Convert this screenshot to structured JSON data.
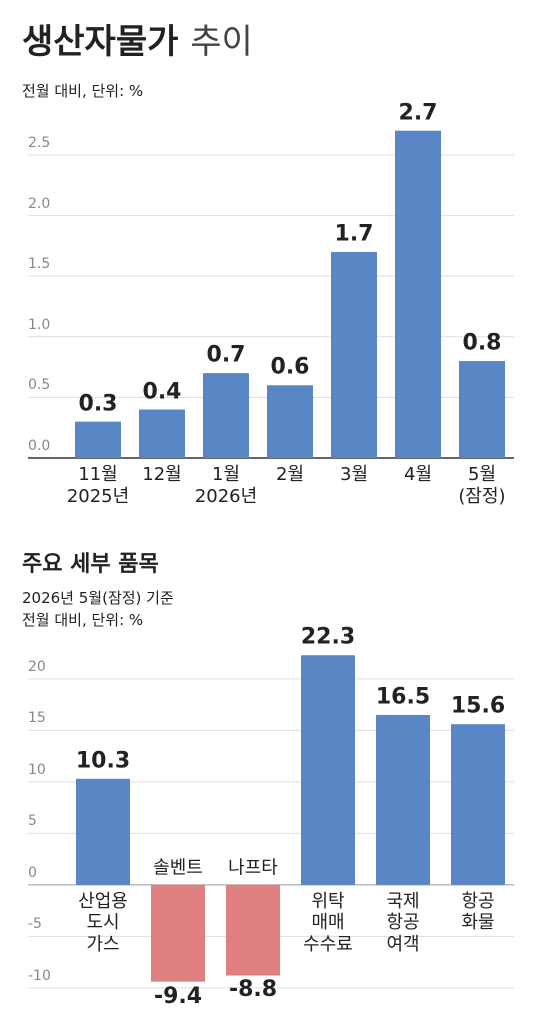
{
  "header": {
    "title": "생산자물가",
    "title_light": "추이"
  },
  "chart_data": [
    {
      "type": "bar",
      "subtitle": "전월 대비, 단위: %",
      "categories": [
        "11월\n2025년",
        "12월",
        "1월\n2026년",
        "2월",
        "3월",
        "4월",
        "5월\n(잠정)"
      ],
      "values": [
        0.3,
        0.4,
        0.7,
        0.6,
        1.7,
        2.7,
        0.8
      ],
      "color": "#5b86c5",
      "ylim": [
        0,
        2.8
      ],
      "yticks": [
        {
          "value": 0,
          "label": "0.0"
        },
        0.5,
        {
          "value": 1,
          "label": "1.0"
        },
        1.5,
        {
          "value": 2,
          "label": "2.0"
        },
        2.5
      ],
      "grid": true
    },
    {
      "type": "bar",
      "title": "주요 세부 품목",
      "subtitle": "2026년 5월(잠정) 기준\n전월 대비, 단위: %",
      "categories": [
        "산업용\n도시\n가스",
        "솔벤트",
        "나프타",
        "위탁\n매매\n수수료",
        "국제\n항공\n여객",
        "항공\n화물"
      ],
      "values": [
        10.3,
        -9.4,
        -8.8,
        22.3,
        16.5,
        15.6
      ],
      "colors": [
        "#5b86c5",
        "#e07f80",
        "#e07f80",
        "#5b86c5",
        "#5b86c5",
        "#5b86c5"
      ],
      "ylim": [
        -10.5,
        23
      ],
      "yticks": [
        -10,
        -5,
        0,
        5,
        10,
        15,
        20
      ],
      "grid": true
    }
  ]
}
